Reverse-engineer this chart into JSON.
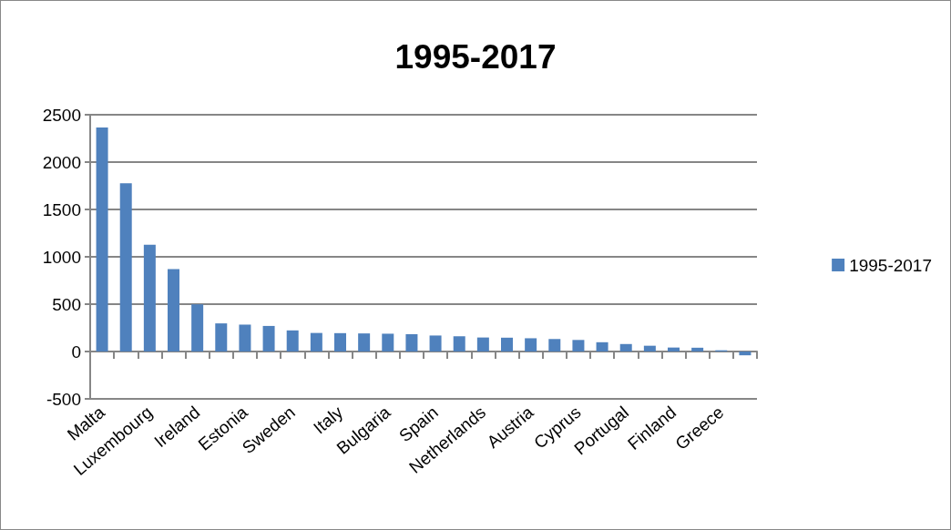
{
  "chart_data": {
    "type": "bar",
    "title": "1995-2017",
    "categories": [
      "Malta",
      null,
      "Luxembourg",
      null,
      "Ireland",
      null,
      "Estonia",
      null,
      "Sweden",
      null,
      "Italy",
      null,
      "Bulgaria",
      null,
      "Spain",
      null,
      "Netherlands",
      null,
      "Austria",
      null,
      "Cyprus",
      null,
      "Portugal",
      null,
      "Finland",
      null,
      "Greece",
      null
    ],
    "series": [
      {
        "name": "1995-2017",
        "color": "#4f81bd",
        "values": [
          2365,
          1776,
          1127,
          870,
          498,
          297,
          284,
          270,
          223,
          196,
          194,
          191,
          188,
          183,
          169,
          161,
          148,
          146,
          140,
          132,
          122,
          98,
          79,
          61,
          42,
          40,
          13,
          -40
        ]
      }
    ],
    "ylim": [
      -500,
      2500
    ],
    "yticks": [
      -500,
      0,
      500,
      1000,
      1500,
      2000,
      2500
    ],
    "grid": "y",
    "legend": "right"
  }
}
